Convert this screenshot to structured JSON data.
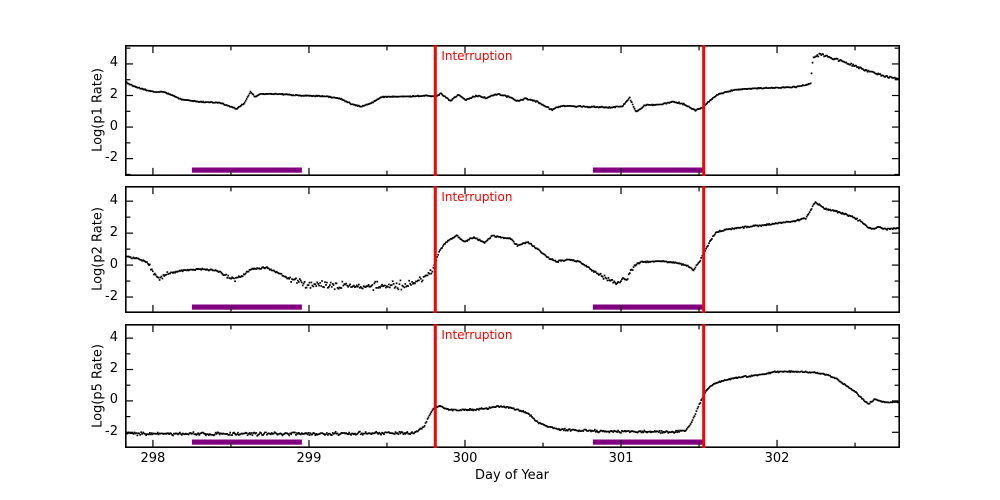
{
  "figure": {
    "xlabel": "Day of Year",
    "xlim": [
      297.821,
      302.788
    ],
    "x_major_ticks": [
      298,
      299,
      300,
      301,
      302
    ],
    "x_minor_ticks": [
      298.5,
      299.5,
      300.5,
      301.5,
      302.5
    ],
    "background_color": "#ffffff",
    "frame_color": "#000000",
    "data_color": "#000000",
    "annotations": {
      "interruption_label": "Interruption",
      "interruption_text_color": "#ff0000",
      "vline_color": "#ff0000",
      "vlines_x": [
        299.81,
        301.53
      ],
      "bar_color": "#800080",
      "bars_x": [
        [
          298.25,
          298.955
        ],
        [
          300.82,
          301.535
        ]
      ]
    }
  },
  "chart_data": [
    {
      "type": "scatter",
      "ylabel": "Log(p1 Rate)",
      "ylim": [
        -3.1,
        5.2
      ],
      "y_major_ticks": [
        -2,
        0,
        2,
        4
      ],
      "y_minor_ticks": [
        -3,
        -1,
        1,
        3,
        5
      ],
      "noise_default": 0.035,
      "noise_regions": [
        [
          299.82,
          301.5,
          0.05
        ],
        [
          302.25,
          302.79,
          0.09
        ]
      ],
      "anchors": [
        [
          297.82,
          2.9
        ],
        [
          297.88,
          2.6
        ],
        [
          297.95,
          2.4
        ],
        [
          298.02,
          2.25
        ],
        [
          298.06,
          2.3
        ],
        [
          298.12,
          2.05
        ],
        [
          298.18,
          1.8
        ],
        [
          298.3,
          1.65
        ],
        [
          298.42,
          1.6
        ],
        [
          298.48,
          1.4
        ],
        [
          298.53,
          1.2
        ],
        [
          298.58,
          1.55
        ],
        [
          298.62,
          2.3
        ],
        [
          298.65,
          1.95
        ],
        [
          298.68,
          2.15
        ],
        [
          298.8,
          2.15
        ],
        [
          298.95,
          2.05
        ],
        [
          299.1,
          2.0
        ],
        [
          299.2,
          1.85
        ],
        [
          299.27,
          1.5
        ],
        [
          299.33,
          1.35
        ],
        [
          299.4,
          1.6
        ],
        [
          299.46,
          1.95
        ],
        [
          299.55,
          2.0
        ],
        [
          299.65,
          2.0
        ],
        [
          299.75,
          2.05
        ],
        [
          299.81,
          2.0
        ],
        [
          299.84,
          2.2
        ],
        [
          299.9,
          1.7
        ],
        [
          299.95,
          2.1
        ],
        [
          300.0,
          1.8
        ],
        [
          300.07,
          2.05
        ],
        [
          300.13,
          1.9
        ],
        [
          300.2,
          2.15
        ],
        [
          300.27,
          2.0
        ],
        [
          300.33,
          1.7
        ],
        [
          300.38,
          1.85
        ],
        [
          300.46,
          1.65
        ],
        [
          300.55,
          1.15
        ],
        [
          300.62,
          1.4
        ],
        [
          300.75,
          1.35
        ],
        [
          300.9,
          1.3
        ],
        [
          301.0,
          1.35
        ],
        [
          301.05,
          1.9
        ],
        [
          301.09,
          1.0
        ],
        [
          301.15,
          1.45
        ],
        [
          301.25,
          1.5
        ],
        [
          301.33,
          1.65
        ],
        [
          301.4,
          1.5
        ],
        [
          301.47,
          1.1
        ],
        [
          301.52,
          1.3
        ],
        [
          301.56,
          1.7
        ],
        [
          301.62,
          2.15
        ],
        [
          301.72,
          2.4
        ],
        [
          301.85,
          2.5
        ],
        [
          302.0,
          2.55
        ],
        [
          302.12,
          2.6
        ],
        [
          302.19,
          2.75
        ],
        [
          302.21,
          2.85
        ],
        [
          302.225,
          4.45
        ],
        [
          302.27,
          4.65
        ],
        [
          302.33,
          4.5
        ],
        [
          302.42,
          4.2
        ],
        [
          302.5,
          3.9
        ],
        [
          302.58,
          3.6
        ],
        [
          302.65,
          3.35
        ],
        [
          302.72,
          3.2
        ],
        [
          302.79,
          3.1
        ]
      ]
    },
    {
      "type": "scatter",
      "ylabel": "Log(p2 Rate)",
      "ylim": [
        -3.0,
        4.95
      ],
      "y_major_ticks": [
        -2,
        0,
        2,
        4
      ],
      "y_minor_ticks": [
        -3,
        -1,
        1,
        3,
        5
      ],
      "noise_default": 0.06,
      "noise_regions": [
        [
          297.97,
          298.1,
          0.18
        ],
        [
          298.42,
          298.62,
          0.18
        ],
        [
          298.85,
          299.79,
          0.32
        ],
        [
          300.85,
          301.07,
          0.18
        ]
      ],
      "anchors": [
        [
          297.82,
          0.6
        ],
        [
          297.9,
          0.45
        ],
        [
          297.96,
          0.2
        ],
        [
          298.0,
          -0.5
        ],
        [
          298.04,
          -0.8
        ],
        [
          298.1,
          -0.45
        ],
        [
          298.18,
          -0.3
        ],
        [
          298.3,
          -0.2
        ],
        [
          298.4,
          -0.3
        ],
        [
          298.47,
          -0.7
        ],
        [
          298.52,
          -0.85
        ],
        [
          298.58,
          -0.5
        ],
        [
          298.63,
          -0.2
        ],
        [
          298.72,
          -0.1
        ],
        [
          298.78,
          -0.35
        ],
        [
          298.85,
          -0.7
        ],
        [
          298.95,
          -1.1
        ],
        [
          299.1,
          -1.2
        ],
        [
          299.3,
          -1.3
        ],
        [
          299.5,
          -1.25
        ],
        [
          299.62,
          -1.15
        ],
        [
          299.7,
          -0.95
        ],
        [
          299.76,
          -0.5
        ],
        [
          299.79,
          -0.15
        ],
        [
          299.83,
          0.9
        ],
        [
          299.87,
          1.45
        ],
        [
          299.94,
          1.9
        ],
        [
          299.99,
          1.5
        ],
        [
          300.05,
          1.8
        ],
        [
          300.12,
          1.45
        ],
        [
          300.17,
          1.9
        ],
        [
          300.23,
          1.8
        ],
        [
          300.29,
          1.7
        ],
        [
          300.33,
          1.25
        ],
        [
          300.4,
          1.5
        ],
        [
          300.46,
          1.05
        ],
        [
          300.52,
          0.55
        ],
        [
          300.58,
          0.25
        ],
        [
          300.65,
          0.4
        ],
        [
          300.72,
          0.3
        ],
        [
          300.8,
          -0.2
        ],
        [
          300.89,
          -0.75
        ],
        [
          300.97,
          -1.1
        ],
        [
          301.03,
          -0.8
        ],
        [
          301.08,
          0.0
        ],
        [
          301.12,
          0.25
        ],
        [
          301.25,
          0.3
        ],
        [
          301.35,
          0.2
        ],
        [
          301.42,
          0.0
        ],
        [
          301.46,
          -0.25
        ],
        [
          301.5,
          0.3
        ],
        [
          301.54,
          1.1
        ],
        [
          301.6,
          2.1
        ],
        [
          301.68,
          2.3
        ],
        [
          301.8,
          2.45
        ],
        [
          301.95,
          2.6
        ],
        [
          302.1,
          2.8
        ],
        [
          302.18,
          3.0
        ],
        [
          302.24,
          4.0
        ],
        [
          302.3,
          3.6
        ],
        [
          302.38,
          3.4
        ],
        [
          302.47,
          3.1
        ],
        [
          302.53,
          2.8
        ],
        [
          302.58,
          2.4
        ],
        [
          302.61,
          2.3
        ],
        [
          302.64,
          2.45
        ],
        [
          302.7,
          2.3
        ],
        [
          302.79,
          2.4
        ]
      ]
    },
    {
      "type": "scatter",
      "ylabel": "Log(p5 Rate)",
      "ylim": [
        -3.0,
        4.9
      ],
      "y_major_ticks": [
        -2,
        0,
        2,
        4
      ],
      "y_minor_ticks": [
        -3,
        -1,
        1,
        3,
        5
      ],
      "noise_default": 0.05,
      "noise_regions": [
        [
          297.82,
          299.7,
          0.12
        ],
        [
          299.85,
          300.45,
          0.07
        ],
        [
          300.6,
          301.42,
          0.09
        ]
      ],
      "anchors": [
        [
          297.82,
          -2.05
        ],
        [
          298.5,
          -2.05
        ],
        [
          299.0,
          -2.05
        ],
        [
          299.4,
          -2.0
        ],
        [
          299.6,
          -2.0
        ],
        [
          299.68,
          -1.95
        ],
        [
          299.73,
          -1.6
        ],
        [
          299.76,
          -1.0
        ],
        [
          299.79,
          -0.45
        ],
        [
          299.83,
          -0.25
        ],
        [
          299.88,
          -0.5
        ],
        [
          299.95,
          -0.55
        ],
        [
          300.05,
          -0.5
        ],
        [
          300.15,
          -0.4
        ],
        [
          300.22,
          -0.28
        ],
        [
          300.28,
          -0.35
        ],
        [
          300.34,
          -0.55
        ],
        [
          300.4,
          -0.75
        ],
        [
          300.46,
          -1.3
        ],
        [
          300.52,
          -1.55
        ],
        [
          300.6,
          -1.75
        ],
        [
          300.7,
          -1.82
        ],
        [
          300.85,
          -1.87
        ],
        [
          301.0,
          -1.9
        ],
        [
          301.2,
          -1.9
        ],
        [
          301.35,
          -1.93
        ],
        [
          301.41,
          -1.8
        ],
        [
          301.44,
          -1.45
        ],
        [
          301.47,
          -0.8
        ],
        [
          301.5,
          -0.1
        ],
        [
          301.54,
          0.7
        ],
        [
          301.58,
          1.1
        ],
        [
          301.65,
          1.35
        ],
        [
          301.75,
          1.55
        ],
        [
          301.88,
          1.72
        ],
        [
          301.98,
          1.9
        ],
        [
          302.05,
          1.92
        ],
        [
          302.15,
          1.9
        ],
        [
          302.25,
          1.85
        ],
        [
          302.32,
          1.7
        ],
        [
          302.38,
          1.45
        ],
        [
          302.44,
          1.0
        ],
        [
          302.5,
          0.6
        ],
        [
          302.55,
          0.1
        ],
        [
          302.58,
          -0.15
        ],
        [
          302.62,
          0.15
        ],
        [
          302.67,
          0.0
        ],
        [
          302.72,
          -0.05
        ],
        [
          302.79,
          0.0
        ]
      ]
    }
  ]
}
